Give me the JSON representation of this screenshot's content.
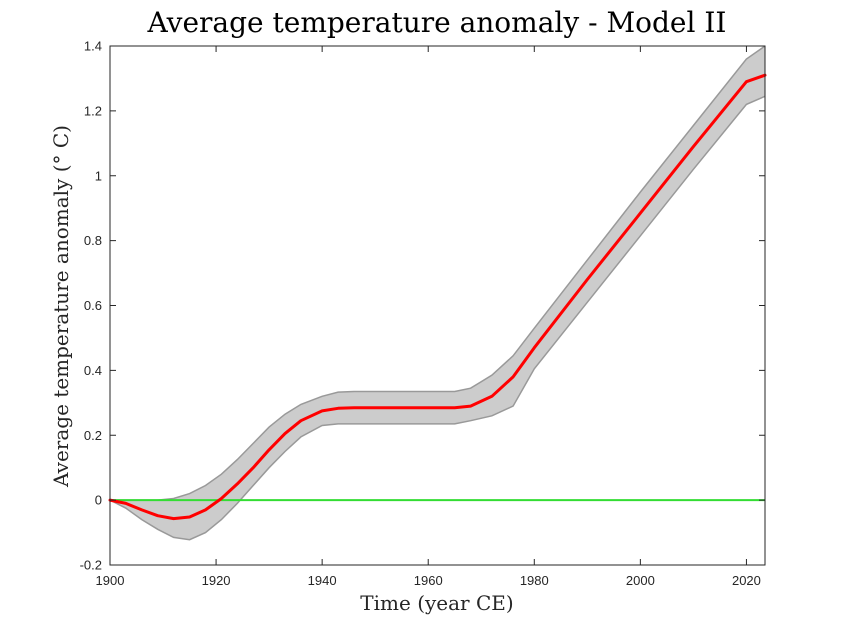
{
  "chart_data": {
    "type": "line",
    "title": "Average temperature anomaly - Model II",
    "xlabel": "Time (year CE)",
    "ylabel": "Average temperature anomaly (° C)",
    "xlim": [
      1900,
      2023.5
    ],
    "ylim": [
      -0.2,
      1.4
    ],
    "xticks": [
      1900,
      1920,
      1940,
      1960,
      1980,
      2000,
      2020
    ],
    "yticks": [
      -0.2,
      0,
      0.2,
      0.4,
      0.6,
      0.8,
      1,
      1.2,
      1.4
    ],
    "ytick_labels": [
      "-0.2",
      "0",
      "0.2",
      "0.4",
      "0.6",
      "0.8",
      "1",
      "1.2",
      "1.4"
    ],
    "grid": false,
    "colors": {
      "mean": "#ff0000",
      "band_fill": "#cccccc",
      "band_edge": "#999999",
      "baseline": "#33dd33"
    },
    "series": [
      {
        "type": "line",
        "x": [
          1900,
          1903,
          1906,
          1909,
          1912,
          1915,
          1918,
          1921,
          1924,
          1927,
          1930,
          1933,
          1936,
          1940,
          1943,
          1946,
          1950,
          1955,
          1960,
          1965,
          1968,
          1972,
          1976,
          1980,
          1990,
          2000,
          2010,
          2020,
          2023.5
        ],
        "y": [
          0,
          -0.01,
          -0.03,
          -0.048,
          -0.057,
          -0.052,
          -0.03,
          0.005,
          0.05,
          0.1,
          0.155,
          0.205,
          0.245,
          0.275,
          0.283,
          0.285,
          0.285,
          0.285,
          0.285,
          0.285,
          0.29,
          0.32,
          0.38,
          0.47,
          0.68,
          0.885,
          1.09,
          1.29,
          1.31
        ]
      },
      {
        "type": "band",
        "x": [
          1900,
          1903,
          1906,
          1909,
          1912,
          1915,
          1918,
          1921,
          1924,
          1927,
          1930,
          1933,
          1936,
          1940,
          1943,
          1946,
          1950,
          1955,
          1960,
          1965,
          1968,
          1972,
          1976,
          1980,
          1990,
          2000,
          2010,
          2020,
          2023.5
        ],
        "upper": [
          0,
          0,
          0,
          0,
          0.005,
          0.02,
          0.045,
          0.08,
          0.125,
          0.175,
          0.225,
          0.265,
          0.295,
          0.32,
          0.333,
          0.335,
          0.335,
          0.335,
          0.335,
          0.335,
          0.345,
          0.385,
          0.445,
          0.53,
          0.74,
          0.95,
          1.155,
          1.36,
          1.4
        ],
        "lower": [
          0,
          -0.025,
          -0.06,
          -0.09,
          -0.115,
          -0.122,
          -0.1,
          -0.06,
          -0.01,
          0.045,
          0.1,
          0.15,
          0.195,
          0.23,
          0.235,
          0.235,
          0.235,
          0.235,
          0.235,
          0.235,
          0.245,
          0.26,
          0.29,
          0.405,
          0.61,
          0.815,
          1.02,
          1.22,
          1.245
        ]
      },
      {
        "type": "line",
        "x": [
          1900,
          2023.5
        ],
        "y": [
          0,
          0
        ]
      }
    ]
  }
}
